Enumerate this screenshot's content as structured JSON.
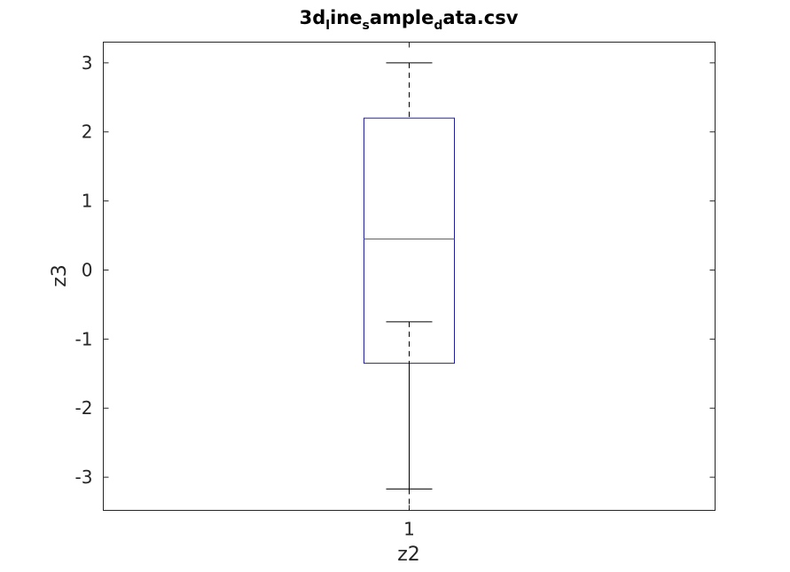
{
  "chart_data": {
    "type": "boxplot",
    "title": {
      "parts": [
        {
          "text": "3d",
          "sub": false
        },
        {
          "text": "l",
          "sub": true
        },
        {
          "text": "ine",
          "sub": false
        },
        {
          "text": "s",
          "sub": true
        },
        {
          "text": "ample",
          "sub": false
        },
        {
          "text": "d",
          "sub": true
        },
        {
          "text": "ata.csv",
          "sub": false
        }
      ]
    },
    "xlabel": "z2",
    "ylabel": "z3",
    "categories": [
      "1"
    ],
    "ylim": [
      -3.48,
      3.3
    ],
    "yticks": [
      {
        "value": 3,
        "label": "3"
      },
      {
        "value": 2,
        "label": "2"
      },
      {
        "value": 1,
        "label": "1"
      },
      {
        "value": 0,
        "label": "0"
      },
      {
        "value": -1,
        "label": "-1"
      },
      {
        "value": -2,
        "label": "-2"
      },
      {
        "value": -3,
        "label": "-3"
      }
    ],
    "boxes": [
      {
        "category": "1",
        "upper_whisker": 3.0,
        "q3": 2.2,
        "median": 0.45,
        "q1": -1.35,
        "lower_whisker": -3.17,
        "inner_cap": -0.75
      }
    ],
    "colors": {
      "box": "#1f1f9e",
      "median": "#d6302e",
      "whisker": "#000000",
      "axes": "#262626"
    }
  }
}
